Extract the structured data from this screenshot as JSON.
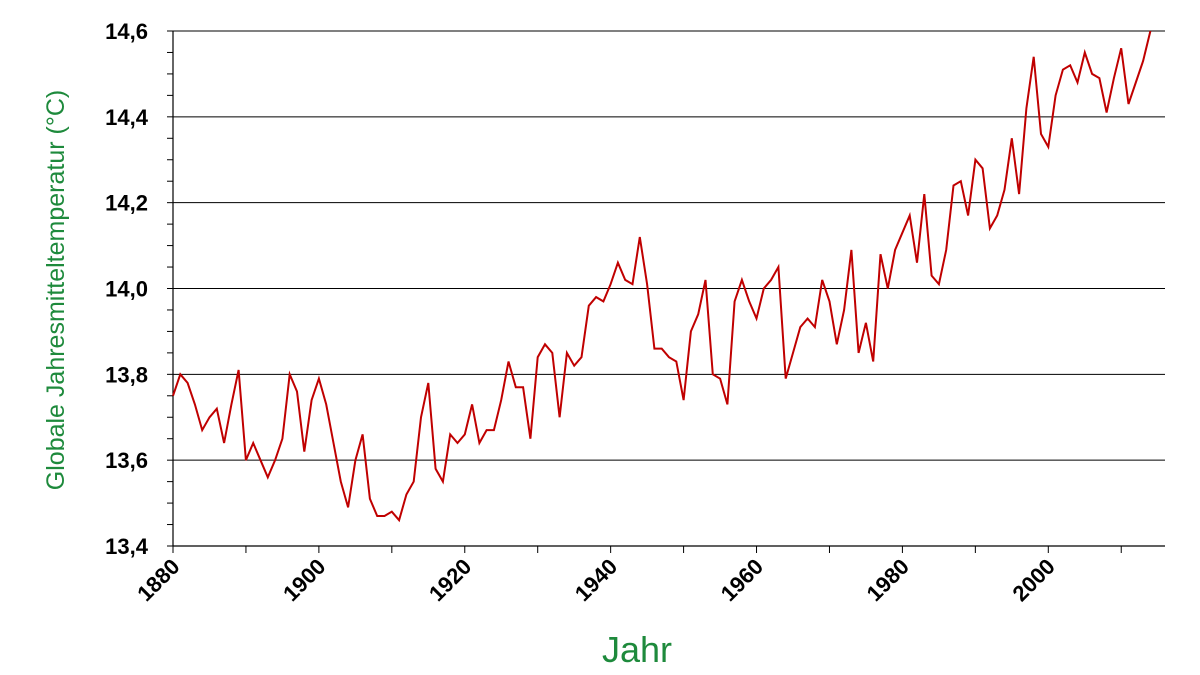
{
  "chart_data": {
    "type": "line",
    "title": "",
    "xlabel": "Jahr",
    "ylabel": "Globale Jahresmitteltemperatur (°C)",
    "xlim": [
      1880,
      2016
    ],
    "ylim": [
      13.4,
      14.6
    ],
    "x_ticks": [
      1880,
      1900,
      1920,
      1940,
      1960,
      1980,
      2000
    ],
    "x_tick_labels": [
      "1880",
      "1900",
      "1920",
      "1940",
      "1960",
      "1980",
      "2000"
    ],
    "y_ticks": [
      13.4,
      13.6,
      13.8,
      14.0,
      14.2,
      14.4,
      14.6
    ],
    "y_tick_labels": [
      "13,4",
      "13,6",
      "13,8",
      "14,0",
      "14,2",
      "14,4",
      "14,6"
    ],
    "grid": "horizontal",
    "legend": "none",
    "colors": {
      "line": "#c00000",
      "axis_title": "#1e8a3c",
      "grid": "#000000"
    },
    "series": [
      {
        "x": [
          1880,
          1881,
          1882,
          1883,
          1884,
          1885,
          1886,
          1887,
          1888,
          1889,
          1890,
          1891,
          1892,
          1893,
          1894,
          1895,
          1896,
          1897,
          1898,
          1899,
          1900,
          1901,
          1902,
          1903,
          1904,
          1905,
          1906,
          1907,
          1908,
          1909,
          1910,
          1911,
          1912,
          1913,
          1914,
          1915,
          1916,
          1917,
          1918,
          1919,
          1920,
          1921,
          1922,
          1923,
          1924,
          1925,
          1926,
          1927,
          1928,
          1929,
          1930,
          1931,
          1932,
          1933,
          1934,
          1935,
          1936,
          1937,
          1938,
          1939,
          1940,
          1941,
          1942,
          1943,
          1944,
          1945,
          1946,
          1947,
          1948,
          1949,
          1950,
          1951,
          1952,
          1953,
          1954,
          1955,
          1956,
          1957,
          1958,
          1959,
          1960,
          1961,
          1962,
          1963,
          1964,
          1965,
          1966,
          1967,
          1968,
          1969,
          1970,
          1971,
          1972,
          1973,
          1974,
          1975,
          1976,
          1977,
          1978,
          1979,
          1980,
          1981,
          1982,
          1983,
          1984,
          1985,
          1986,
          1987,
          1988,
          1989,
          1990,
          1991,
          1992,
          1993,
          1994,
          1995,
          1996,
          1997,
          1998,
          1999,
          2000,
          2001,
          2002,
          2003,
          2004,
          2005,
          2006,
          2007,
          2008,
          2009,
          2010,
          2011,
          2012,
          2013,
          2014
        ],
        "values": [
          13.75,
          13.8,
          13.78,
          13.73,
          13.67,
          13.7,
          13.72,
          13.64,
          13.73,
          13.81,
          13.6,
          13.64,
          13.6,
          13.56,
          13.6,
          13.65,
          13.8,
          13.76,
          13.62,
          13.74,
          13.79,
          13.73,
          13.64,
          13.55,
          13.49,
          13.6,
          13.66,
          13.51,
          13.47,
          13.47,
          13.48,
          13.46,
          13.52,
          13.55,
          13.7,
          13.78,
          13.58,
          13.55,
          13.66,
          13.64,
          13.66,
          13.73,
          13.64,
          13.67,
          13.67,
          13.74,
          13.83,
          13.77,
          13.77,
          13.65,
          13.84,
          13.87,
          13.85,
          13.7,
          13.85,
          13.82,
          13.84,
          13.96,
          13.98,
          13.97,
          14.01,
          14.06,
          14.02,
          14.01,
          14.12,
          14.01,
          13.86,
          13.86,
          13.84,
          13.83,
          13.74,
          13.9,
          13.94,
          14.02,
          13.8,
          13.79,
          13.73,
          13.97,
          14.02,
          13.97,
          13.93,
          14.0,
          14.02,
          14.05,
          13.79,
          13.85,
          13.91,
          13.93,
          13.91,
          14.02,
          13.97,
          13.87,
          13.95,
          14.09,
          13.85,
          13.92,
          13.83,
          14.08,
          14.0,
          14.09,
          14.13,
          14.17,
          14.06,
          14.22,
          14.03,
          14.01,
          14.09,
          14.24,
          14.25,
          14.17,
          14.3,
          14.28,
          14.14,
          14.17,
          14.23,
          14.35,
          14.22,
          14.42,
          14.54,
          14.36,
          14.33,
          14.45,
          14.51,
          14.52,
          14.48,
          14.55,
          14.5,
          14.49,
          14.41,
          14.49,
          14.56,
          14.43,
          14.48,
          14.53,
          14.6
        ]
      }
    ]
  }
}
